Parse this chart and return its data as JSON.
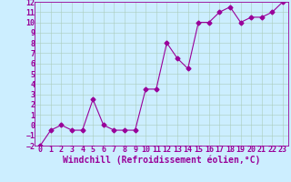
{
  "x": [
    0,
    1,
    2,
    3,
    4,
    5,
    6,
    7,
    8,
    9,
    10,
    11,
    12,
    13,
    14,
    15,
    16,
    17,
    18,
    19,
    20,
    21,
    22,
    23
  ],
  "y": [
    -2,
    -0.5,
    0,
    -0.5,
    -0.5,
    2.5,
    0,
    -0.5,
    -0.5,
    -0.5,
    3.5,
    3.5,
    8,
    6.5,
    5.5,
    10,
    10,
    11,
    11.5,
    10,
    10.5,
    10.5,
    11,
    12
  ],
  "line_color": "#990099",
  "marker_color": "#990099",
  "bg_color": "#cceeff",
  "grid_color": "#aaccbb",
  "xlabel": "Windchill (Refroidissement éolien,°C)",
  "ylim": [
    -2,
    12
  ],
  "xlim": [
    -0.5,
    23.5
  ],
  "yticks": [
    -2,
    -1,
    0,
    1,
    2,
    3,
    4,
    5,
    6,
    7,
    8,
    9,
    10,
    11,
    12
  ],
  "xticks": [
    0,
    1,
    2,
    3,
    4,
    5,
    6,
    7,
    8,
    9,
    10,
    11,
    12,
    13,
    14,
    15,
    16,
    17,
    18,
    19,
    20,
    21,
    22,
    23
  ],
  "tick_color": "#990099",
  "spine_color": "#990099",
  "font_size": 6,
  "xlabel_font_size": 7,
  "marker_size": 2.5,
  "line_width": 0.8
}
